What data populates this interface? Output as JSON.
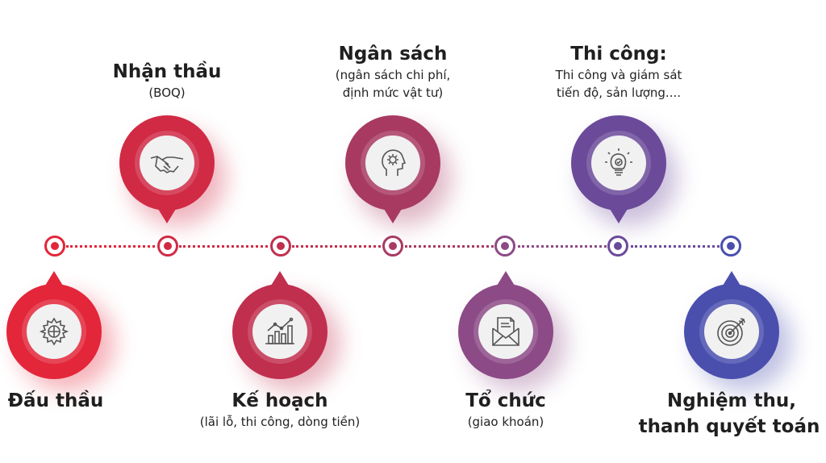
{
  "colors": {
    "step1": "#e3263a",
    "step2": "#d12a45",
    "step3": "#c12f4e",
    "step4": "#a83a62",
    "step5": "#8c4a86",
    "step6": "#6b4a9a",
    "step7": "#4a4fae"
  },
  "steps": [
    {
      "title": "Đấu thầu",
      "subtitle": "",
      "icon": "gear-icon"
    },
    {
      "title": "Nhận thầu",
      "subtitle": "(BOQ)",
      "icon": "handshake-icon"
    },
    {
      "title": "Kế hoạch",
      "subtitle": "(lãi lỗ, thi công, dòng tiền)",
      "icon": "bar-chart-icon"
    },
    {
      "title": "Ngân sách",
      "subtitle_lines": [
        "(ngân sách chi phí,",
        "định mức vật tư)"
      ],
      "icon": "head-gear-icon"
    },
    {
      "title": "Tổ chức",
      "subtitle": "(giao khoán)",
      "icon": "envelope-icon"
    },
    {
      "title": "Thi công:",
      "subtitle_lines": [
        "Thi công và giám sát",
        "tiến độ, sản lượng...."
      ],
      "icon": "lightbulb-icon"
    },
    {
      "title_lines": [
        "Nghiệm thu,",
        "thanh quyết toán"
      ],
      "icon": "target-icon"
    }
  ]
}
